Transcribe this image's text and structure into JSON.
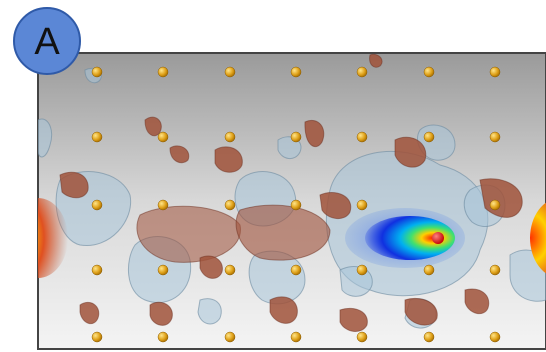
{
  "panel_label": "A"
}
